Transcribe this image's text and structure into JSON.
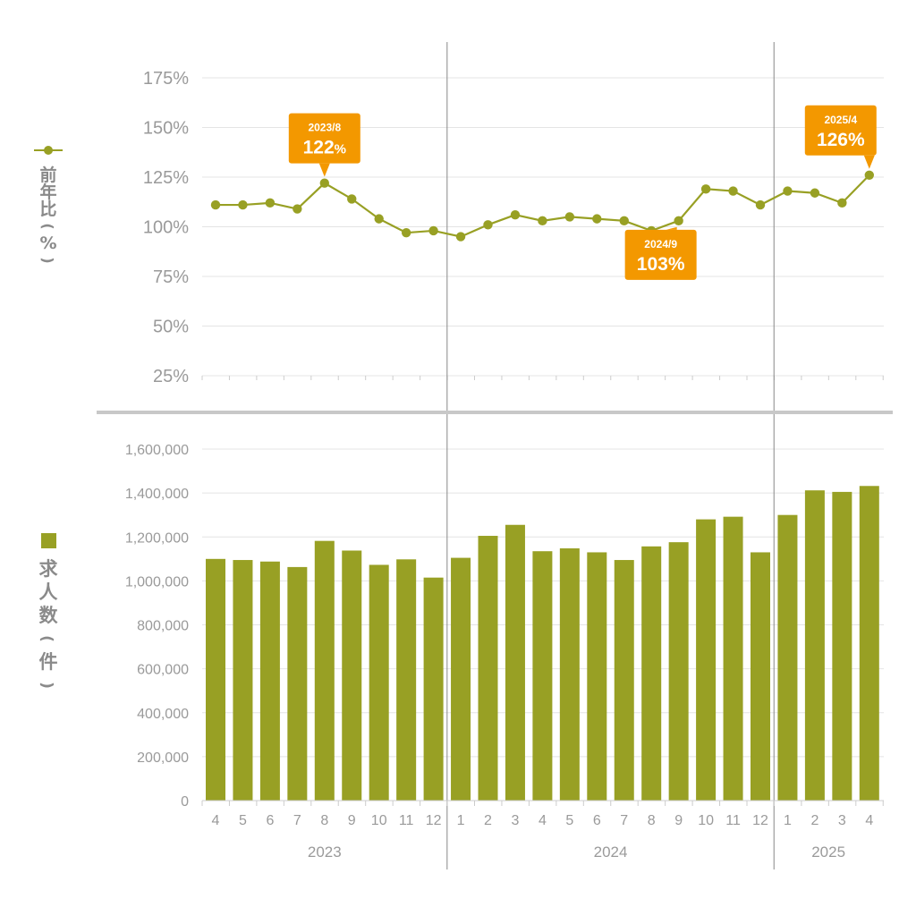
{
  "colors": {
    "series": "#98a024",
    "callout": "#f39800",
    "grid": "#e4e4e4",
    "divider": "#c8c8c8",
    "year_line": "#888888",
    "tick_text": "#9a9a9a",
    "legend_text": "#8a8a8a"
  },
  "legend": {
    "line_label": [
      "前",
      "年",
      "比",
      "(",
      "%",
      ")"
    ],
    "bar_label": [
      "求",
      "人",
      "数",
      "(",
      "件",
      ")"
    ]
  },
  "chart_data": [
    {
      "type": "line",
      "ylabel": "前年比(%)",
      "ylim": [
        25,
        175
      ],
      "yticks": [
        "25%",
        "50%",
        "75%",
        "100%",
        "125%",
        "150%",
        "175%"
      ],
      "ytick_values": [
        25,
        50,
        75,
        100,
        125,
        150,
        175
      ],
      "grid": true,
      "x": [
        "2023/4",
        "2023/5",
        "2023/6",
        "2023/7",
        "2023/8",
        "2023/9",
        "2023/10",
        "2023/11",
        "2023/12",
        "2024/1",
        "2024/2",
        "2024/3",
        "2024/4",
        "2024/5",
        "2024/6",
        "2024/7",
        "2024/8",
        "2024/9",
        "2024/10",
        "2024/11",
        "2024/12",
        "2025/1",
        "2025/2",
        "2025/3",
        "2025/4"
      ],
      "series": [
        {
          "values": [
            111,
            111,
            112,
            109,
            122,
            114,
            104,
            97,
            98,
            95,
            101,
            106,
            103,
            105,
            104,
            103,
            98,
            103,
            119,
            118,
            111,
            118,
            117,
            112,
            126
          ]
        }
      ],
      "annotations": [
        {
          "index": 4,
          "date": "2023/8",
          "value_text": "122",
          "unit": "%",
          "position": "above"
        },
        {
          "index": 17,
          "date": "2024/9",
          "value_text": "103%",
          "unit": "",
          "position": "below"
        },
        {
          "index": 24,
          "date": "2025/4",
          "value_text": "126%",
          "unit": "",
          "position": "above"
        }
      ]
    },
    {
      "type": "bar",
      "ylabel": "求人数(件)",
      "ylim": [
        0,
        1600000
      ],
      "yticks": [
        "0",
        "200,000",
        "400,000",
        "600,000",
        "800,000",
        "1,000,000",
        "1,200,000",
        "1,400,000",
        "1,600,000"
      ],
      "ytick_values": [
        0,
        200000,
        400000,
        600000,
        800000,
        1000000,
        1200000,
        1400000,
        1600000
      ],
      "grid": true,
      "categories": [
        "4",
        "5",
        "6",
        "7",
        "8",
        "9",
        "10",
        "11",
        "12",
        "1",
        "2",
        "3",
        "4",
        "5",
        "6",
        "7",
        "8",
        "9",
        "10",
        "11",
        "12",
        "1",
        "2",
        "3",
        "4"
      ],
      "year_groups": [
        {
          "label": "2023",
          "start": 0,
          "end": 8
        },
        {
          "label": "2024",
          "start": 9,
          "end": 20
        },
        {
          "label": "2025",
          "start": 21,
          "end": 24
        }
      ],
      "series": [
        {
          "values": [
            1100000,
            1095000,
            1088000,
            1063000,
            1182000,
            1138000,
            1073000,
            1098000,
            1015000,
            1105000,
            1205000,
            1255000,
            1135000,
            1148000,
            1130000,
            1095000,
            1157000,
            1176000,
            1280000,
            1292000,
            1130000,
            1300000,
            1412000,
            1405000,
            1432000
          ]
        }
      ]
    }
  ]
}
